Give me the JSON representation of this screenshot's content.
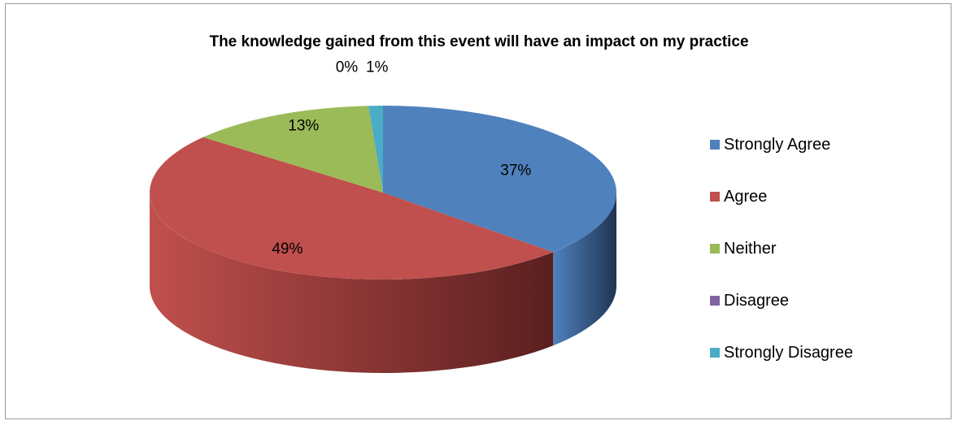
{
  "chart_data": {
    "type": "pie",
    "title": "The knowledge gained from this event will have an impact on my practice",
    "categories": [
      "Strongly Agree",
      "Agree",
      "Neither",
      "Disagree",
      "Strongly Disagree"
    ],
    "values": [
      37,
      49,
      13,
      0,
      1
    ],
    "labels": [
      "37%",
      "49%",
      "13%",
      "0%",
      "1%"
    ],
    "unit": "%",
    "colors": [
      "#4F81BD",
      "#C0504D",
      "#9BBB59",
      "#8064A2",
      "#4BACC6"
    ],
    "side_colors": [
      "#1F3552",
      "#5A1F1F",
      "#4A5A28",
      "#3E2F52",
      "#226070"
    ],
    "legend_placement": "right",
    "style": "3d-pie"
  }
}
